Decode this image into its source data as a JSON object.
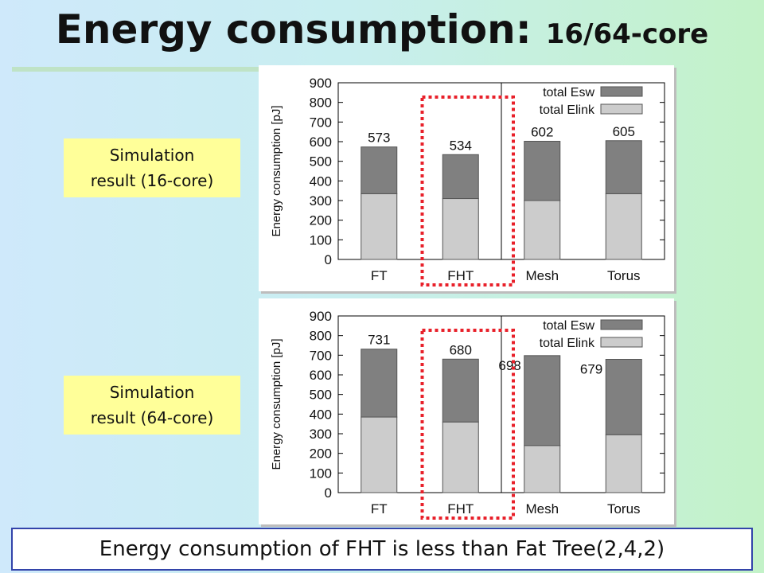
{
  "title": {
    "main": "Energy consumption:",
    "sub": "16/64-core"
  },
  "labels": {
    "chart16": "Simulation\nresult (16-core)",
    "chart64": "Simulation\nresult (64-core)"
  },
  "footer": "Energy consumption of FHT is less than Fat Tree(2,4,2)",
  "colors": {
    "esw": "#808080",
    "elink": "#cccccc",
    "highlight": "#e8202a"
  },
  "chart_data": [
    {
      "type": "bar",
      "stacked": true,
      "categories": [
        "FT",
        "FHT",
        "Mesh",
        "Torus"
      ],
      "series": [
        {
          "name": "total Elink",
          "values": [
            335,
            310,
            300,
            335
          ]
        },
        {
          "name": "total Esw",
          "values": [
            238,
            224,
            302,
            270
          ]
        }
      ],
      "totals": [
        "573",
        "534",
        "602",
        "605"
      ],
      "ylabel": "Energy consumption [pJ]",
      "ylim": [
        0,
        900
      ],
      "yticks": [
        "0",
        "100",
        "200",
        "300",
        "400",
        "500",
        "600",
        "700",
        "800",
        "900"
      ],
      "legend": "top-right",
      "separator_after": "FHT",
      "highlight": "FHT"
    },
    {
      "type": "bar",
      "stacked": true,
      "categories": [
        "FT",
        "FHT",
        "Mesh",
        "Torus"
      ],
      "series": [
        {
          "name": "total Elink",
          "values": [
            385,
            360,
            240,
            295
          ]
        },
        {
          "name": "total Esw",
          "values": [
            346,
            320,
            458,
            384
          ]
        }
      ],
      "totals": [
        "731",
        "680",
        "698",
        "679"
      ],
      "ylabel": "Energy consumption [pJ]",
      "ylim": [
        0,
        900
      ],
      "yticks": [
        "0",
        "100",
        "200",
        "300",
        "400",
        "500",
        "600",
        "700",
        "800",
        "900"
      ],
      "legend": "top-right",
      "separator_after": "FHT",
      "highlight": "FHT"
    }
  ]
}
